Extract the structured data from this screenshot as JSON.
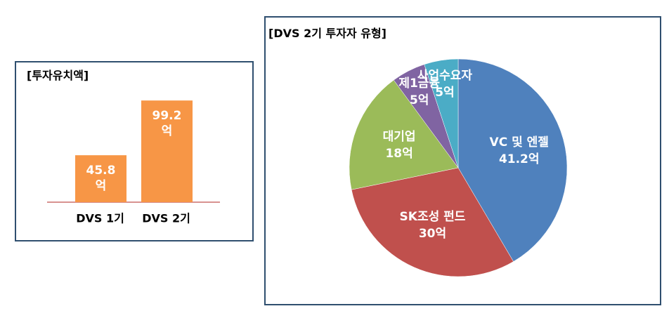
{
  "chart_data": [
    {
      "type": "bar",
      "title": "[투자유치액]",
      "categories": [
        "DVS 1기",
        "DVS 2기"
      ],
      "values": [
        45.8,
        99.2
      ],
      "value_labels": [
        "45.8\n억",
        "99.2\n억"
      ],
      "color": "#f79646",
      "baseline_color": "#c0504d"
    },
    {
      "type": "pie",
      "title": "[DVS 2기 투자자 유형]",
      "categories": [
        "VC 및 엔젤",
        "SK조성 펀드",
        "대기업",
        "제1금융",
        "사업수요자"
      ],
      "values": [
        41.2,
        30,
        18,
        5,
        5
      ],
      "value_labels": [
        "41.2억",
        "30억",
        "18억",
        "5억",
        "5억"
      ],
      "colors": [
        "#4f81bd",
        "#c0504d",
        "#9bbb59",
        "#8064a2",
        "#4bacc6"
      ]
    }
  ]
}
